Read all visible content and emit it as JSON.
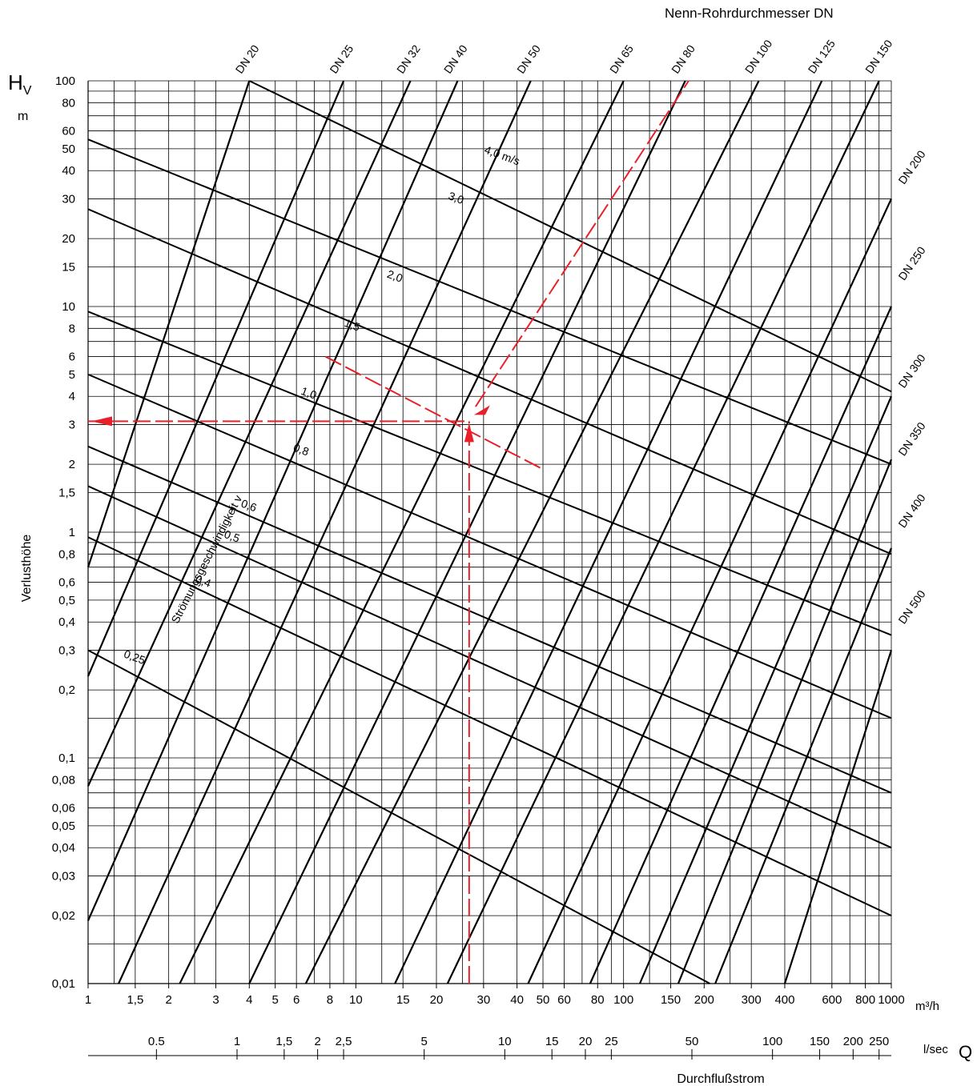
{
  "chart_data": {
    "type": "line",
    "top_title": "Nenn-Rohrdurchmesser DN",
    "ylabel_symbol": "H",
    "ylabel_subscript": "V",
    "ylabel_unit": "m",
    "ylabel_text": "Verlusthöhe",
    "q_symbol": "Q",
    "xlabel_text": "Durchflußstrom",
    "x_unit": "m³/h",
    "x2_unit": "l/sec",
    "velocity_caption": "Strömungsgeschwindigkeit v",
    "x_scale": "log",
    "y_scale": "log",
    "xlim": [
      1,
      1000
    ],
    "ylim": [
      0.01,
      100
    ],
    "grid": true,
    "x_ticks": [
      {
        "v": 1,
        "label": "1"
      },
      {
        "v": 1.5,
        "label": "1,5"
      },
      {
        "v": 2,
        "label": "2"
      },
      {
        "v": 3,
        "label": "3"
      },
      {
        "v": 4,
        "label": "4"
      },
      {
        "v": 5,
        "label": "5"
      },
      {
        "v": 6,
        "label": "6"
      },
      {
        "v": 8,
        "label": "8"
      },
      {
        "v": 10,
        "label": "10"
      },
      {
        "v": 15,
        "label": "15"
      },
      {
        "v": 20,
        "label": "20"
      },
      {
        "v": 30,
        "label": "30"
      },
      {
        "v": 40,
        "label": "40"
      },
      {
        "v": 50,
        "label": "50"
      },
      {
        "v": 60,
        "label": "60"
      },
      {
        "v": 80,
        "label": "80"
      },
      {
        "v": 100,
        "label": "100"
      },
      {
        "v": 150,
        "label": "150"
      },
      {
        "v": 200,
        "label": "200"
      },
      {
        "v": 300,
        "label": "300"
      },
      {
        "v": 400,
        "label": "400"
      },
      {
        "v": 600,
        "label": "600"
      },
      {
        "v": 800,
        "label": "800"
      },
      {
        "v": 1000,
        "label": "1000"
      }
    ],
    "x_grid": [
      1,
      1.25,
      1.5,
      2,
      2.5,
      3,
      4,
      5,
      6,
      7,
      8,
      9,
      10,
      12.5,
      15,
      20,
      25,
      30,
      40,
      50,
      60,
      70,
      80,
      90,
      100,
      125,
      150,
      200,
      250,
      300,
      400,
      500,
      600,
      700,
      800,
      900,
      1000
    ],
    "y_ticks": [
      {
        "v": 100,
        "label": "100"
      },
      {
        "v": 80,
        "label": "80"
      },
      {
        "v": 60,
        "label": "60"
      },
      {
        "v": 50,
        "label": "50"
      },
      {
        "v": 40,
        "label": "40"
      },
      {
        "v": 30,
        "label": "30"
      },
      {
        "v": 20,
        "label": "20"
      },
      {
        "v": 15,
        "label": "15"
      },
      {
        "v": 10,
        "label": "10"
      },
      {
        "v": 8,
        "label": "8"
      },
      {
        "v": 6,
        "label": "6"
      },
      {
        "v": 5,
        "label": "5"
      },
      {
        "v": 4,
        "label": "4"
      },
      {
        "v": 3,
        "label": "3"
      },
      {
        "v": 2,
        "label": "2"
      },
      {
        "v": 1.5,
        "label": "1,5"
      },
      {
        "v": 1,
        "label": "1"
      },
      {
        "v": 0.8,
        "label": "0,8"
      },
      {
        "v": 0.6,
        "label": "0,6"
      },
      {
        "v": 0.5,
        "label": "0,5"
      },
      {
        "v": 0.4,
        "label": "0,4"
      },
      {
        "v": 0.3,
        "label": "0,3"
      },
      {
        "v": 0.2,
        "label": "0,2"
      },
      {
        "v": 0.1,
        "label": "0,1"
      },
      {
        "v": 0.08,
        "label": "0,08"
      },
      {
        "v": 0.06,
        "label": "0,06"
      },
      {
        "v": 0.05,
        "label": "0,05"
      },
      {
        "v": 0.04,
        "label": "0,04"
      },
      {
        "v": 0.03,
        "label": "0,03"
      },
      {
        "v": 0.02,
        "label": "0,02"
      },
      {
        "v": 0.01,
        "label": "0,01"
      }
    ],
    "y_grid": [
      100,
      90,
      80,
      70,
      60,
      50,
      40,
      30,
      20,
      15,
      10,
      9,
      8,
      7,
      6,
      5,
      4,
      3,
      2,
      1.5,
      1,
      0.9,
      0.8,
      0.7,
      0.6,
      0.5,
      0.4,
      0.3,
      0.2,
      0.15,
      0.1,
      0.09,
      0.08,
      0.07,
      0.06,
      0.05,
      0.04,
      0.03,
      0.02,
      0.015,
      0.01
    ],
    "lsec_ticks": [
      {
        "v": 0.5,
        "label": "0.5"
      },
      {
        "v": 1,
        "label": "1"
      },
      {
        "v": 1.5,
        "label": "1,5"
      },
      {
        "v": 2,
        "label": "2"
      },
      {
        "v": 2.5,
        "label": "2,5"
      },
      {
        "v": 5,
        "label": "5"
      },
      {
        "v": 10,
        "label": "10"
      },
      {
        "v": 15,
        "label": "15"
      },
      {
        "v": 20,
        "label": "20"
      },
      {
        "v": 25,
        "label": "25"
      },
      {
        "v": 50,
        "label": "50"
      },
      {
        "v": 100,
        "label": "100"
      },
      {
        "v": 150,
        "label": "150"
      },
      {
        "v": 200,
        "label": "200"
      },
      {
        "v": 250,
        "label": "250"
      }
    ],
    "dn_series": [
      {
        "name": "DN 20",
        "x": [
          1.0,
          4.0
        ],
        "y": [
          0.7,
          100
        ]
      },
      {
        "name": "DN 25",
        "x": [
          1.0,
          9.0
        ],
        "y": [
          0.23,
          100
        ]
      },
      {
        "name": "DN 32",
        "x": [
          1.0,
          16.0
        ],
        "y": [
          0.075,
          100
        ]
      },
      {
        "name": "DN 40",
        "x": [
          1.0,
          24.0
        ],
        "y": [
          0.019,
          100
        ]
      },
      {
        "name": "DN 50",
        "x": [
          1.3,
          45.0
        ],
        "y": [
          0.01,
          100
        ]
      },
      {
        "name": "DN 65",
        "x": [
          2.2,
          100
        ],
        "y": [
          0.01,
          100
        ]
      },
      {
        "name": "DN 80",
        "x": [
          4.0,
          170
        ],
        "y": [
          0.01,
          100
        ]
      },
      {
        "name": "DN 100",
        "x": [
          6.5,
          320
        ],
        "y": [
          0.01,
          100
        ]
      },
      {
        "name": "DN 125",
        "x": [
          14.0,
          550
        ],
        "y": [
          0.01,
          100
        ]
      },
      {
        "name": "DN 150",
        "x": [
          22.0,
          900
        ],
        "y": [
          0.01,
          100
        ]
      },
      {
        "name": "DN 200",
        "x": [
          44.0,
          1000
        ],
        "y": [
          0.01,
          30
        ]
      },
      {
        "name": "DN 250",
        "x": [
          75.0,
          1000
        ],
        "y": [
          0.01,
          10
        ]
      },
      {
        "name": "DN 300",
        "x": [
          115,
          1000
        ],
        "y": [
          0.01,
          4
        ]
      },
      {
        "name": "DN 350",
        "x": [
          160,
          1000
        ],
        "y": [
          0.01,
          2.1
        ]
      },
      {
        "name": "DN 400",
        "x": [
          220,
          1000
        ],
        "y": [
          0.01,
          0.85
        ]
      },
      {
        "name": "DN 500",
        "x": [
          400,
          1000
        ],
        "y": [
          0.01,
          0.3
        ]
      }
    ],
    "dn_labels": [
      {
        "text": "DN 20",
        "x": 4.0
      },
      {
        "text": "DN 25",
        "x": 9.0
      },
      {
        "text": "DN 32",
        "x": 16.0
      },
      {
        "text": "DN 40",
        "x": 24.0
      },
      {
        "text": "DN 50",
        "x": 45.0
      },
      {
        "text": "DN 65",
        "x": 100
      },
      {
        "text": "DN 80",
        "x": 170
      },
      {
        "text": "DN 100",
        "x": 320
      },
      {
        "text": "DN 125",
        "x": 550
      },
      {
        "text": "DN 150",
        "x": 900
      }
    ],
    "dn_side_labels": [
      {
        "text": "DN 200",
        "y": 40
      },
      {
        "text": "DN 250",
        "y": 15
      },
      {
        "text": "DN 300",
        "y": 5
      },
      {
        "text": "DN 350",
        "y": 2.5
      },
      {
        "text": "DN 400",
        "y": 1.2
      },
      {
        "text": "DN 500",
        "y": 0.45
      }
    ],
    "velocity_series": [
      {
        "label": "4,0 m/s",
        "x": [
          4.0,
          1000
        ],
        "y": [
          100,
          4.2
        ]
      },
      {
        "label": "3,0",
        "x": [
          1.0,
          1000
        ],
        "y": [
          55,
          2.0
        ]
      },
      {
        "label": "2,0",
        "x": [
          1.0,
          1000
        ],
        "y": [
          27,
          0.8
        ]
      },
      {
        "label": "1,5",
        "x": [
          1.0,
          1000
        ],
        "y": [
          9.5,
          0.35
        ]
      },
      {
        "label": "1,0",
        "x": [
          1.0,
          1000
        ],
        "y": [
          5.0,
          0.15
        ]
      },
      {
        "label": "0,8",
        "x": [
          1.0,
          1000
        ],
        "y": [
          2.4,
          0.07
        ]
      },
      {
        "label": "0,6",
        "x": [
          1.0,
          1000
        ],
        "y": [
          1.6,
          0.04
        ]
      },
      {
        "label": "0,5",
        "x": [
          1.0,
          1000
        ],
        "y": [
          0.95,
          0.02
        ]
      },
      {
        "label": "0,4",
        "x": [
          1.0,
          210
        ],
        "y": [
          0.3,
          0.01
        ]
      },
      {
        "label": "0,25",
        "x": [],
        "y": []
      }
    ],
    "velocity_labels": [
      {
        "text": "4,0 m/s",
        "x": 30,
        "y": 48
      },
      {
        "text": "3,0",
        "x": 22,
        "y": 30
      },
      {
        "text": "2,0",
        "x": 13,
        "y": 13.5
      },
      {
        "text": "1,5",
        "x": 9,
        "y": 8.2
      },
      {
        "text": "1,0",
        "x": 6.2,
        "y": 4.1
      },
      {
        "text": "0,8",
        "x": 5.8,
        "y": 2.3
      },
      {
        "text": "0,6",
        "x": 3.7,
        "y": 1.3
      },
      {
        "text": "0,5",
        "x": 3.2,
        "y": 0.95
      },
      {
        "text": "0,4",
        "x": 2.5,
        "y": 0.6
      },
      {
        "text": "0,25",
        "x": 1.35,
        "y": 0.28
      }
    ],
    "example_lines": [
      {
        "name": "horizontal",
        "x": [
          1.0,
          26.5
        ],
        "y": [
          3.1,
          3.1
        ]
      },
      {
        "name": "vertical",
        "x": [
          26.5,
          26.5
        ],
        "y": [
          0.01,
          3.1
        ]
      },
      {
        "name": "diagonal",
        "x": [
          28.0,
          175
        ],
        "y": [
          3.6,
          100
        ]
      },
      {
        "name": "velocity-dash",
        "x": [
          7.7,
          50.0
        ],
        "y": [
          6.0,
          1.9
        ]
      }
    ],
    "colors": {
      "curves": "#000000",
      "grid": "#000000",
      "example": "#e8202a"
    }
  }
}
